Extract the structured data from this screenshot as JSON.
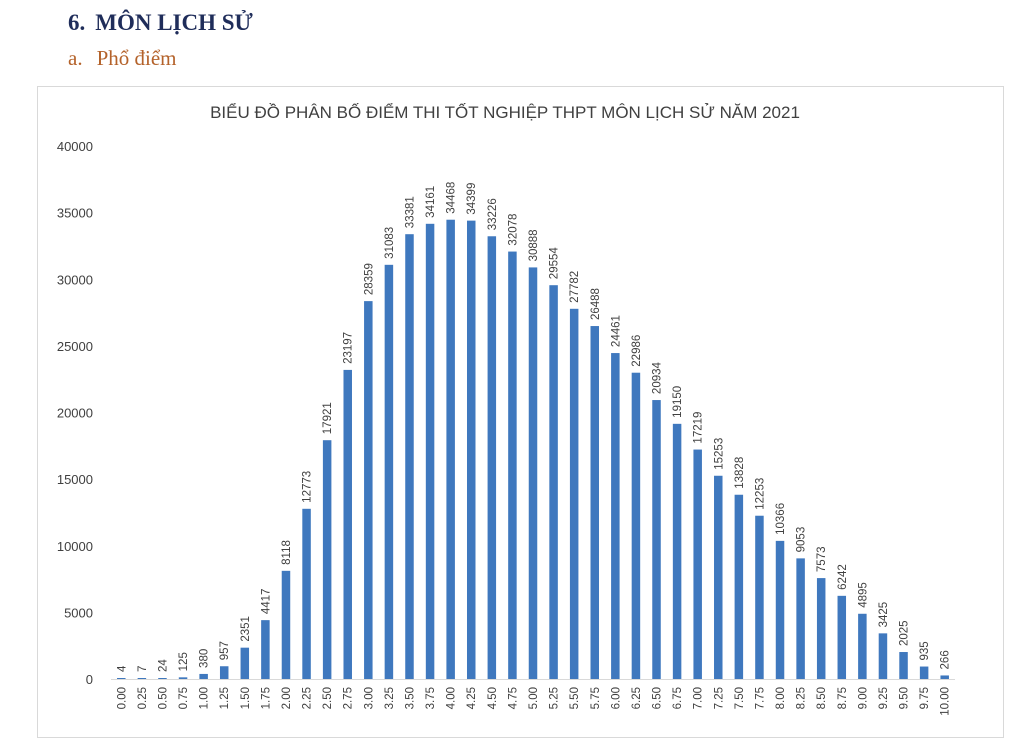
{
  "section": {
    "number": "6.",
    "title": "MÔN LỊCH SỬ",
    "subsection_letter": "a.",
    "subsection_title": "Phổ điểm"
  },
  "colors": {
    "bar": "#3f78be",
    "heading": "#1f2d5a",
    "subheading": "#b4622a"
  },
  "chart_data": {
    "type": "bar",
    "title": "BIỂU ĐỒ PHÂN BỐ ĐIỂM THI TỐT NGHIỆP THPT MÔN LỊCH SỬ NĂM 2021",
    "xlabel": "",
    "ylabel": "",
    "ylim": [
      0,
      40000
    ],
    "yticks": [
      0,
      5000,
      10000,
      15000,
      20000,
      25000,
      30000,
      35000,
      40000
    ],
    "grid": false,
    "legend": "none",
    "categories": [
      "0.00",
      "0.25",
      "0.50",
      "0.75",
      "1.00",
      "1.25",
      "1.50",
      "1.75",
      "2.00",
      "2.25",
      "2.50",
      "2.75",
      "3.00",
      "3.25",
      "3.50",
      "3.75",
      "4.00",
      "4.25",
      "4.50",
      "4.75",
      "5.00",
      "5.25",
      "5.50",
      "5.75",
      "6.00",
      "6.25",
      "6.50",
      "6.75",
      "7.00",
      "7.25",
      "7.50",
      "7.75",
      "8.00",
      "8.25",
      "8.50",
      "8.75",
      "9.00",
      "9.25",
      "9.50",
      "9.75",
      "10.00"
    ],
    "values": [
      4,
      7,
      24,
      125,
      380,
      957,
      2351,
      4417,
      8118,
      12773,
      17921,
      23197,
      28359,
      31083,
      33381,
      34161,
      34468,
      34399,
      33226,
      32078,
      30888,
      29554,
      27782,
      26488,
      24461,
      22986,
      20934,
      19150,
      17219,
      15253,
      13828,
      12253,
      10366,
      9053,
      7573,
      6242,
      4895,
      3425,
      2025,
      935,
      266
    ]
  }
}
